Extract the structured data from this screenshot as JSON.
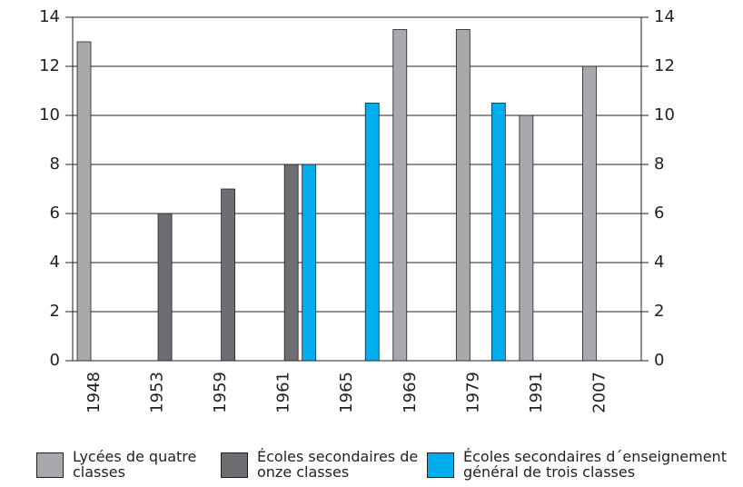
{
  "chart_data": {
    "type": "bar",
    "categories": [
      "1948",
      "1953",
      "1959",
      "1961",
      "1965",
      "1969",
      "1979",
      "1991",
      "2007"
    ],
    "series": [
      {
        "name": "Lycées de quatre classes",
        "color": "#a7a9ac",
        "values": [
          13,
          null,
          null,
          null,
          null,
          13.5,
          13.5,
          10,
          12
        ]
      },
      {
        "name": "Écoles secondaires de onze classes",
        "color": "#6d6e71",
        "values": [
          null,
          6,
          7,
          8,
          null,
          null,
          null,
          null,
          null
        ]
      },
      {
        "name": "Écoles secondaires d´enseignement général de trois classes",
        "color": "#00aeef",
        "values": [
          null,
          null,
          null,
          8,
          10.5,
          null,
          10.5,
          null,
          null
        ]
      }
    ],
    "ylim": [
      0,
      14
    ],
    "yticks": [
      0,
      2,
      4,
      6,
      8,
      10,
      12,
      14
    ],
    "grid": true,
    "legend": "bottom"
  }
}
